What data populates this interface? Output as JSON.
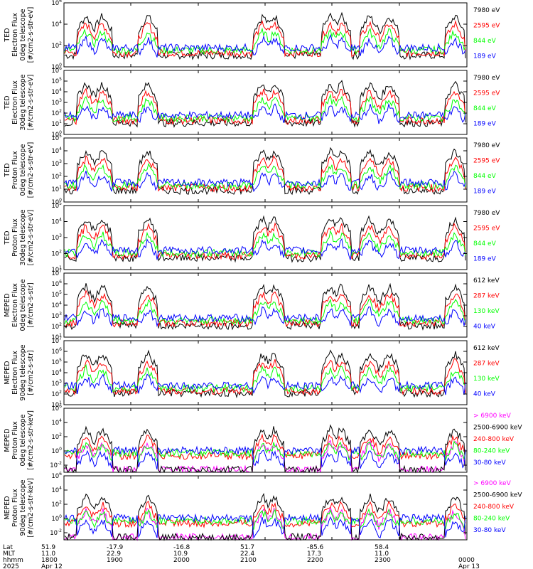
{
  "chart_data": {
    "type": "line",
    "panels": [
      {
        "id": "p1",
        "instrument": "TED",
        "quantity": "Electron Flux",
        "telescope": "0deg telescope",
        "units": "[#/cm2-s-str-eV]",
        "ymin_exp": 0,
        "ymax_exp": 6,
        "tick_exps": [
          0,
          2,
          4,
          6
        ],
        "series": [
          {
            "name": "7980 eV",
            "color": "#000000"
          },
          {
            "name": "2595 eV",
            "color": "#ff0000"
          },
          {
            "name": "844 eV",
            "color": "#00ff00"
          },
          {
            "name": "189 eV",
            "color": "#0000ff"
          }
        ]
      },
      {
        "id": "p2",
        "instrument": "TED",
        "quantity": "Electron Flux",
        "telescope": "30deg telescope",
        "units": "[#/cm2-s-str-eV]",
        "ymin_exp": 0,
        "ymax_exp": 6,
        "tick_exps": [
          0,
          1,
          2,
          3,
          4,
          5,
          6
        ],
        "series": [
          {
            "name": "7980 eV",
            "color": "#000000"
          },
          {
            "name": "2595 eV",
            "color": "#ff0000"
          },
          {
            "name": "844 eV",
            "color": "#00ff00"
          },
          {
            "name": "189 eV",
            "color": "#0000ff"
          }
        ]
      },
      {
        "id": "p3",
        "instrument": "TED",
        "quantity": "Proton Flux",
        "telescope": "0deg telescope",
        "units": "[#/cm2-s-str-eV]",
        "ymin_exp": 0,
        "ymax_exp": 5,
        "tick_exps": [
          0,
          1,
          2,
          3,
          4,
          5
        ],
        "series": [
          {
            "name": "7980 eV",
            "color": "#000000"
          },
          {
            "name": "2595 eV",
            "color": "#ff0000"
          },
          {
            "name": "844 eV",
            "color": "#00ff00"
          },
          {
            "name": "189 eV",
            "color": "#0000ff"
          }
        ]
      },
      {
        "id": "p4",
        "instrument": "TED",
        "quantity": "Proton Flux",
        "telescope": "30deg telescope",
        "units": "[#/cm2-s-str-eV]",
        "ymin_exp": 1,
        "ymax_exp": 5,
        "tick_exps": [
          1,
          2,
          3,
          4,
          5
        ],
        "series": [
          {
            "name": "7980 eV",
            "color": "#000000"
          },
          {
            "name": "2595 eV",
            "color": "#ff0000"
          },
          {
            "name": "844 eV",
            "color": "#00ff00"
          },
          {
            "name": "189 eV",
            "color": "#0000ff"
          }
        ]
      },
      {
        "id": "p5",
        "instrument": "MEPED",
        "quantity": "Electron Flux",
        "telescope": "0deg telescope",
        "units": "[#/cm2-s-str]",
        "ymin_exp": 1,
        "ymax_exp": 7,
        "tick_exps": [
          1,
          2,
          3,
          4,
          5,
          6,
          7
        ],
        "series": [
          {
            "name": "612 keV",
            "color": "#000000"
          },
          {
            "name": "287 keV",
            "color": "#ff0000"
          },
          {
            "name": "130 keV",
            "color": "#00ff00"
          },
          {
            "name": "40 keV",
            "color": "#0000ff"
          }
        ]
      },
      {
        "id": "p6",
        "instrument": "MEPED",
        "quantity": "Electron Flux",
        "telescope": "90deg telescope",
        "units": "[#/cm2-s-str]",
        "ymin_exp": 1,
        "ymax_exp": 7,
        "tick_exps": [
          1,
          2,
          3,
          4,
          5,
          6,
          7
        ],
        "series": [
          {
            "name": "612 keV",
            "color": "#000000"
          },
          {
            "name": "287 keV",
            "color": "#ff0000"
          },
          {
            "name": "130 keV",
            "color": "#00ff00"
          },
          {
            "name": "40 keV",
            "color": "#0000ff"
          }
        ]
      },
      {
        "id": "p7",
        "instrument": "MEPED",
        "quantity": "Proton Flux",
        "telescope": "0deg telescope",
        "units": "[#/cm2-s-str-keV]",
        "ymin_exp": -3,
        "ymax_exp": 6,
        "tick_exps": [
          -2,
          0,
          2,
          4,
          6
        ],
        "series": [
          {
            "name": "> 6900 keV",
            "color": "#ff00ff"
          },
          {
            "name": "2500-6900 keV",
            "color": "#000000"
          },
          {
            "name": "240-800 keV",
            "color": "#ff0000"
          },
          {
            "name": "80-240 keV",
            "color": "#00ff00"
          },
          {
            "name": "30-80 keV",
            "color": "#0000ff"
          }
        ]
      },
      {
        "id": "p8",
        "instrument": "MEPED",
        "quantity": "Proton Flux",
        "telescope": "90deg telescope",
        "units": "[#/cm2-s-str-keV]",
        "ymin_exp": -3,
        "ymax_exp": 6,
        "tick_exps": [
          -2,
          0,
          2,
          4,
          6
        ],
        "series": [
          {
            "name": "> 6900 keV",
            "color": "#ff00ff"
          },
          {
            "name": "2500-6900 keV",
            "color": "#000000"
          },
          {
            "name": "240-800 keV",
            "color": "#ff0000"
          },
          {
            "name": "80-240 keV",
            "color": "#00ff00"
          },
          {
            "name": "30-80 keV",
            "color": "#0000ff"
          }
        ]
      }
    ],
    "x_axis": {
      "row_labels": [
        "Lat",
        "MLT",
        "hhmm",
        "2025"
      ],
      "columns": [
        {
          "lat": "51.9",
          "mlt": "11.0",
          "hhmm": "1800",
          "date": "Apr 12"
        },
        {
          "lat": "-17.9",
          "mlt": "22.9",
          "hhmm": "1900",
          "date": ""
        },
        {
          "lat": "-16.8",
          "mlt": "10.9",
          "hhmm": "2000",
          "date": ""
        },
        {
          "lat": "51.7",
          "mlt": "22.4",
          "hhmm": "2100",
          "date": ""
        },
        {
          "lat": "-85.6",
          "mlt": "17.3",
          "hhmm": "2200",
          "date": ""
        },
        {
          "lat": "58.4",
          "mlt": "11.0",
          "hhmm": "2300",
          "date": ""
        },
        {
          "lat": "",
          "mlt": "",
          "hhmm": "0000",
          "date": "Apr 13"
        }
      ]
    }
  }
}
